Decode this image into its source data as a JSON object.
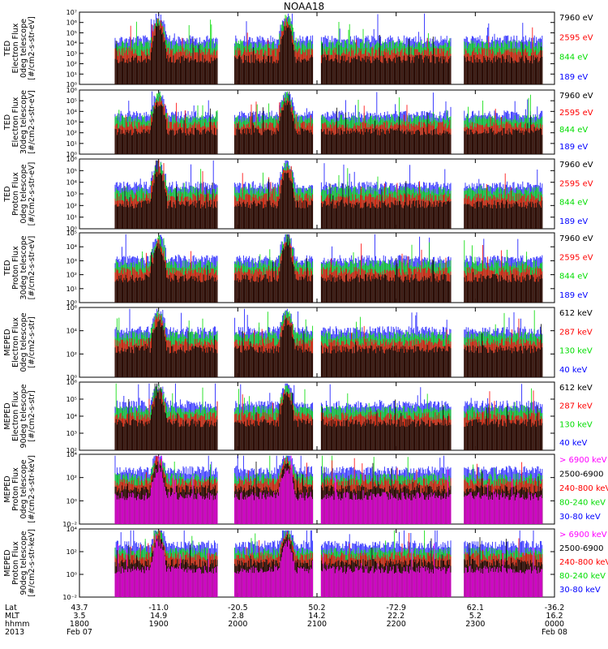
{
  "title": "NOAA18",
  "chart_data": {
    "type": "line",
    "title": "NOAA18",
    "x_axis": {
      "row_labels": [
        "Lat",
        "MLT",
        "hhmm",
        "2013"
      ],
      "ticks": [
        {
          "lat": "43.7",
          "mlt": "3.5",
          "hhmm": "1800",
          "date": "Feb 07"
        },
        {
          "lat": "-11.0",
          "mlt": "14.9",
          "hhmm": "1900",
          "date": ""
        },
        {
          "lat": "-20.5",
          "mlt": "2.8",
          "hhmm": "2000",
          "date": ""
        },
        {
          "lat": "50.2",
          "mlt": "14.2",
          "hhmm": "2100",
          "date": ""
        },
        {
          "lat": "-72.9",
          "mlt": "22.2",
          "hhmm": "2200",
          "date": ""
        },
        {
          "lat": "62.1",
          "mlt": "5.2",
          "hhmm": "2300",
          "date": ""
        },
        {
          "lat": "-36.2",
          "mlt": "16.2",
          "hhmm": "0000",
          "date": "Feb 08"
        }
      ],
      "range_hours": [
        18,
        24
      ]
    },
    "panels": [
      {
        "ylabel": [
          "TED",
          "Electron Flux",
          "0deg telescope",
          "[#/cm2-s-str-eV]"
        ],
        "yscale": "log",
        "ylim": [
          1,
          10000000.0
        ],
        "ytick_labels": [
          "10⁰",
          "10¹",
          "10²",
          "10³",
          "10⁴",
          "10⁵",
          "10⁶",
          "10⁷"
        ],
        "series": [
          {
            "name": "7960 eV",
            "color": "#000000"
          },
          {
            "name": "2595 eV",
            "color": "#ff0000"
          },
          {
            "name": "844 eV",
            "color": "#00dd00"
          },
          {
            "name": "189 eV",
            "color": "#0000ff"
          }
        ]
      },
      {
        "ylabel": [
          "TED",
          "Electron Flux",
          "30deg telescope",
          "[#/cm2-s-str-eV]"
        ],
        "yscale": "log",
        "ylim": [
          1,
          1000000.0
        ],
        "ytick_labels": [
          "10⁰",
          "10¹",
          "10²",
          "10³",
          "10⁴",
          "10⁵",
          "10⁶"
        ],
        "series": [
          {
            "name": "7960 eV",
            "color": "#000000"
          },
          {
            "name": "2595 eV",
            "color": "#ff0000"
          },
          {
            "name": "844 eV",
            "color": "#00dd00"
          },
          {
            "name": "189 eV",
            "color": "#0000ff"
          }
        ]
      },
      {
        "ylabel": [
          "TED",
          "Proton Flux",
          "0deg telescope",
          "[#/cm2-s-str-eV]"
        ],
        "yscale": "log",
        "ylim": [
          1,
          1000000.0
        ],
        "ytick_labels": [
          "10⁰",
          "10¹",
          "10²",
          "10³",
          "10⁴",
          "10⁵",
          "10⁶"
        ],
        "series": [
          {
            "name": "7960 eV",
            "color": "#000000"
          },
          {
            "name": "2595 eV",
            "color": "#ff0000"
          },
          {
            "name": "844 eV",
            "color": "#00dd00"
          },
          {
            "name": "189 eV",
            "color": "#0000ff"
          }
        ]
      },
      {
        "ylabel": [
          "TED",
          "Proton Flux",
          "30deg telescope",
          "[#/cm2-s-str-eV]"
        ],
        "yscale": "log",
        "ylim": [
          1,
          100000.0
        ],
        "ytick_labels": [
          "10⁰",
          "10¹",
          "10²",
          "10³",
          "10⁴",
          "10⁵"
        ],
        "series": [
          {
            "name": "7960 eV",
            "color": "#000000"
          },
          {
            "name": "2595 eV",
            "color": "#ff0000"
          },
          {
            "name": "844 eV",
            "color": "#00dd00"
          },
          {
            "name": "189 eV",
            "color": "#0000ff"
          }
        ]
      },
      {
        "ylabel": [
          "MEPED",
          "Electron Flux",
          "0deg telescope",
          "[#/cm2-s-str]"
        ],
        "yscale": "log",
        "ylim": [
          1,
          1000000.0
        ],
        "ytick_labels": [
          "10⁰",
          "10²",
          "10⁴",
          "10⁶"
        ],
        "series": [
          {
            "name": "612 keV",
            "color": "#000000"
          },
          {
            "name": "287 keV",
            "color": "#ff0000"
          },
          {
            "name": "130 keV",
            "color": "#00dd00"
          },
          {
            "name": "40 keV",
            "color": "#0000ff"
          }
        ]
      },
      {
        "ylabel": [
          "MEPED",
          "Electron Flux",
          "90deg telescope",
          "[#/cm2-s-str]"
        ],
        "yscale": "log",
        "ylim": [
          10,
          1000000.0
        ],
        "ytick_labels": [
          "10²",
          "10³",
          "10⁴",
          "10⁵",
          "10⁶"
        ],
        "series": [
          {
            "name": "612 keV",
            "color": "#000000"
          },
          {
            "name": "287 keV",
            "color": "#ff0000"
          },
          {
            "name": "130 keV",
            "color": "#00dd00"
          },
          {
            "name": "40 keV",
            "color": "#0000ff"
          }
        ]
      },
      {
        "ylabel": [
          "MEPED",
          "Proton Flux",
          "0deg telescope",
          "[#/cm2-s-str-keV]"
        ],
        "yscale": "log",
        "ylim": [
          0.001,
          100000.0
        ],
        "ytick_labels": [
          "10⁻²",
          "10⁰",
          "10²",
          "10⁴"
        ],
        "series": [
          {
            "name": "> 6900 keV",
            "color": "#ff00ff"
          },
          {
            "name": "2500-6900",
            "color": "#000000"
          },
          {
            "name": "240-800 keV",
            "color": "#ff0000"
          },
          {
            "name": "80-240 keV",
            "color": "#00dd00"
          },
          {
            "name": "30-80 keV",
            "color": "#0000ff"
          }
        ]
      },
      {
        "ylabel": [
          "MEPED",
          "Proton Flux",
          "90deg telescope",
          "[#/cm2-s-str-keV]"
        ],
        "yscale": "log",
        "ylim": [
          0.001,
          100000.0
        ],
        "ytick_labels": [
          "10⁻²",
          "10⁰",
          "10²",
          "10⁴"
        ],
        "series": [
          {
            "name": "> 6900 keV",
            "color": "#ff00ff"
          },
          {
            "name": "2500-6900",
            "color": "#000000"
          },
          {
            "name": "240-800 keV",
            "color": "#ff0000"
          },
          {
            "name": "80-240 keV",
            "color": "#00dd00"
          },
          {
            "name": "30-80 keV",
            "color": "#0000ff"
          }
        ]
      }
    ]
  }
}
